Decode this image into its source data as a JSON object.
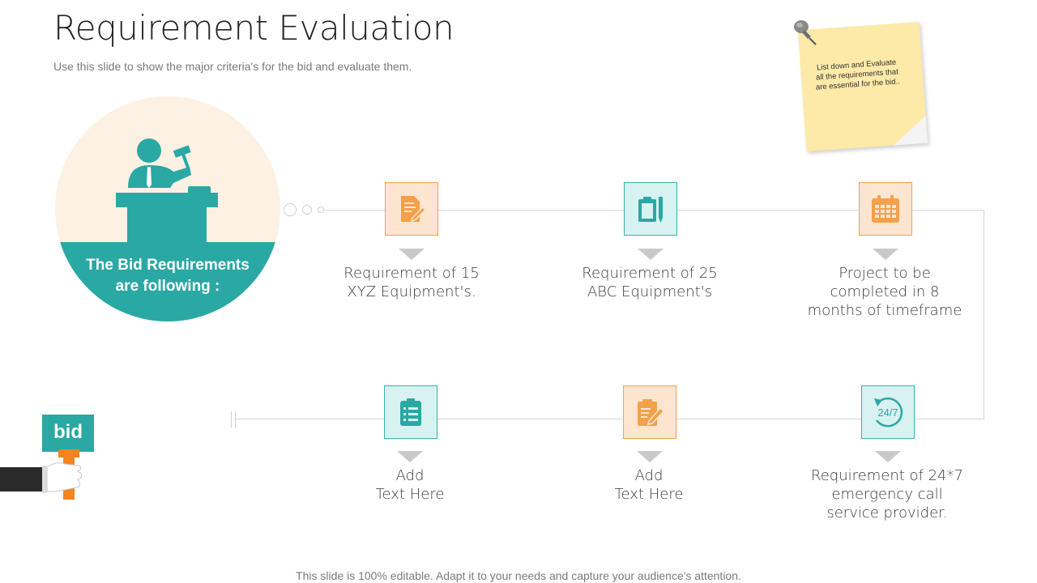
{
  "header": {
    "title": "Requirement Evaluation",
    "subtitle": "Use this slide to show the major criteria's for the bid and evaluate them."
  },
  "note": {
    "text": "List down and Evaluate all the requirements that are essential for the bid.."
  },
  "circle": {
    "label_line1": "The Bid Requirements",
    "label_line2": "are  following :"
  },
  "requirements": [
    {
      "icon": "document-edit-icon",
      "color": "orange",
      "line1": "Requirement of 15",
      "line2": "XYZ Equipment's.",
      "line3": ""
    },
    {
      "icon": "clipboard-pen-icon",
      "color": "teal",
      "line1": "Requirement of 25",
      "line2": "ABC Equipment's",
      "line3": ""
    },
    {
      "icon": "calendar-icon",
      "color": "orange",
      "line1": "Project to be",
      "line2": "completed in 8",
      "line3": "months of timeframe"
    },
    {
      "icon": "checklist-icon",
      "color": "teal",
      "line1": "Add",
      "line2": "Text Here",
      "line3": ""
    },
    {
      "icon": "clipboard-edit-icon",
      "color": "orange",
      "line1": "Add",
      "line2": "Text Here",
      "line3": ""
    },
    {
      "icon": "247-support-icon",
      "color": "teal",
      "line1": "Requirement of 24*7",
      "line2": "emergency call",
      "line3": "service provider.",
      "icon_text": "24/7"
    }
  ],
  "bid_sign": {
    "label": "bid"
  },
  "footer": {
    "text": "This slide is 100% editable. Adapt it to your needs and capture your audience's attention."
  },
  "colors": {
    "teal": "#2aa8a4",
    "orange": "#f5a04a",
    "cream": "#fdf1e3",
    "note_yellow": "#fde9a8"
  }
}
